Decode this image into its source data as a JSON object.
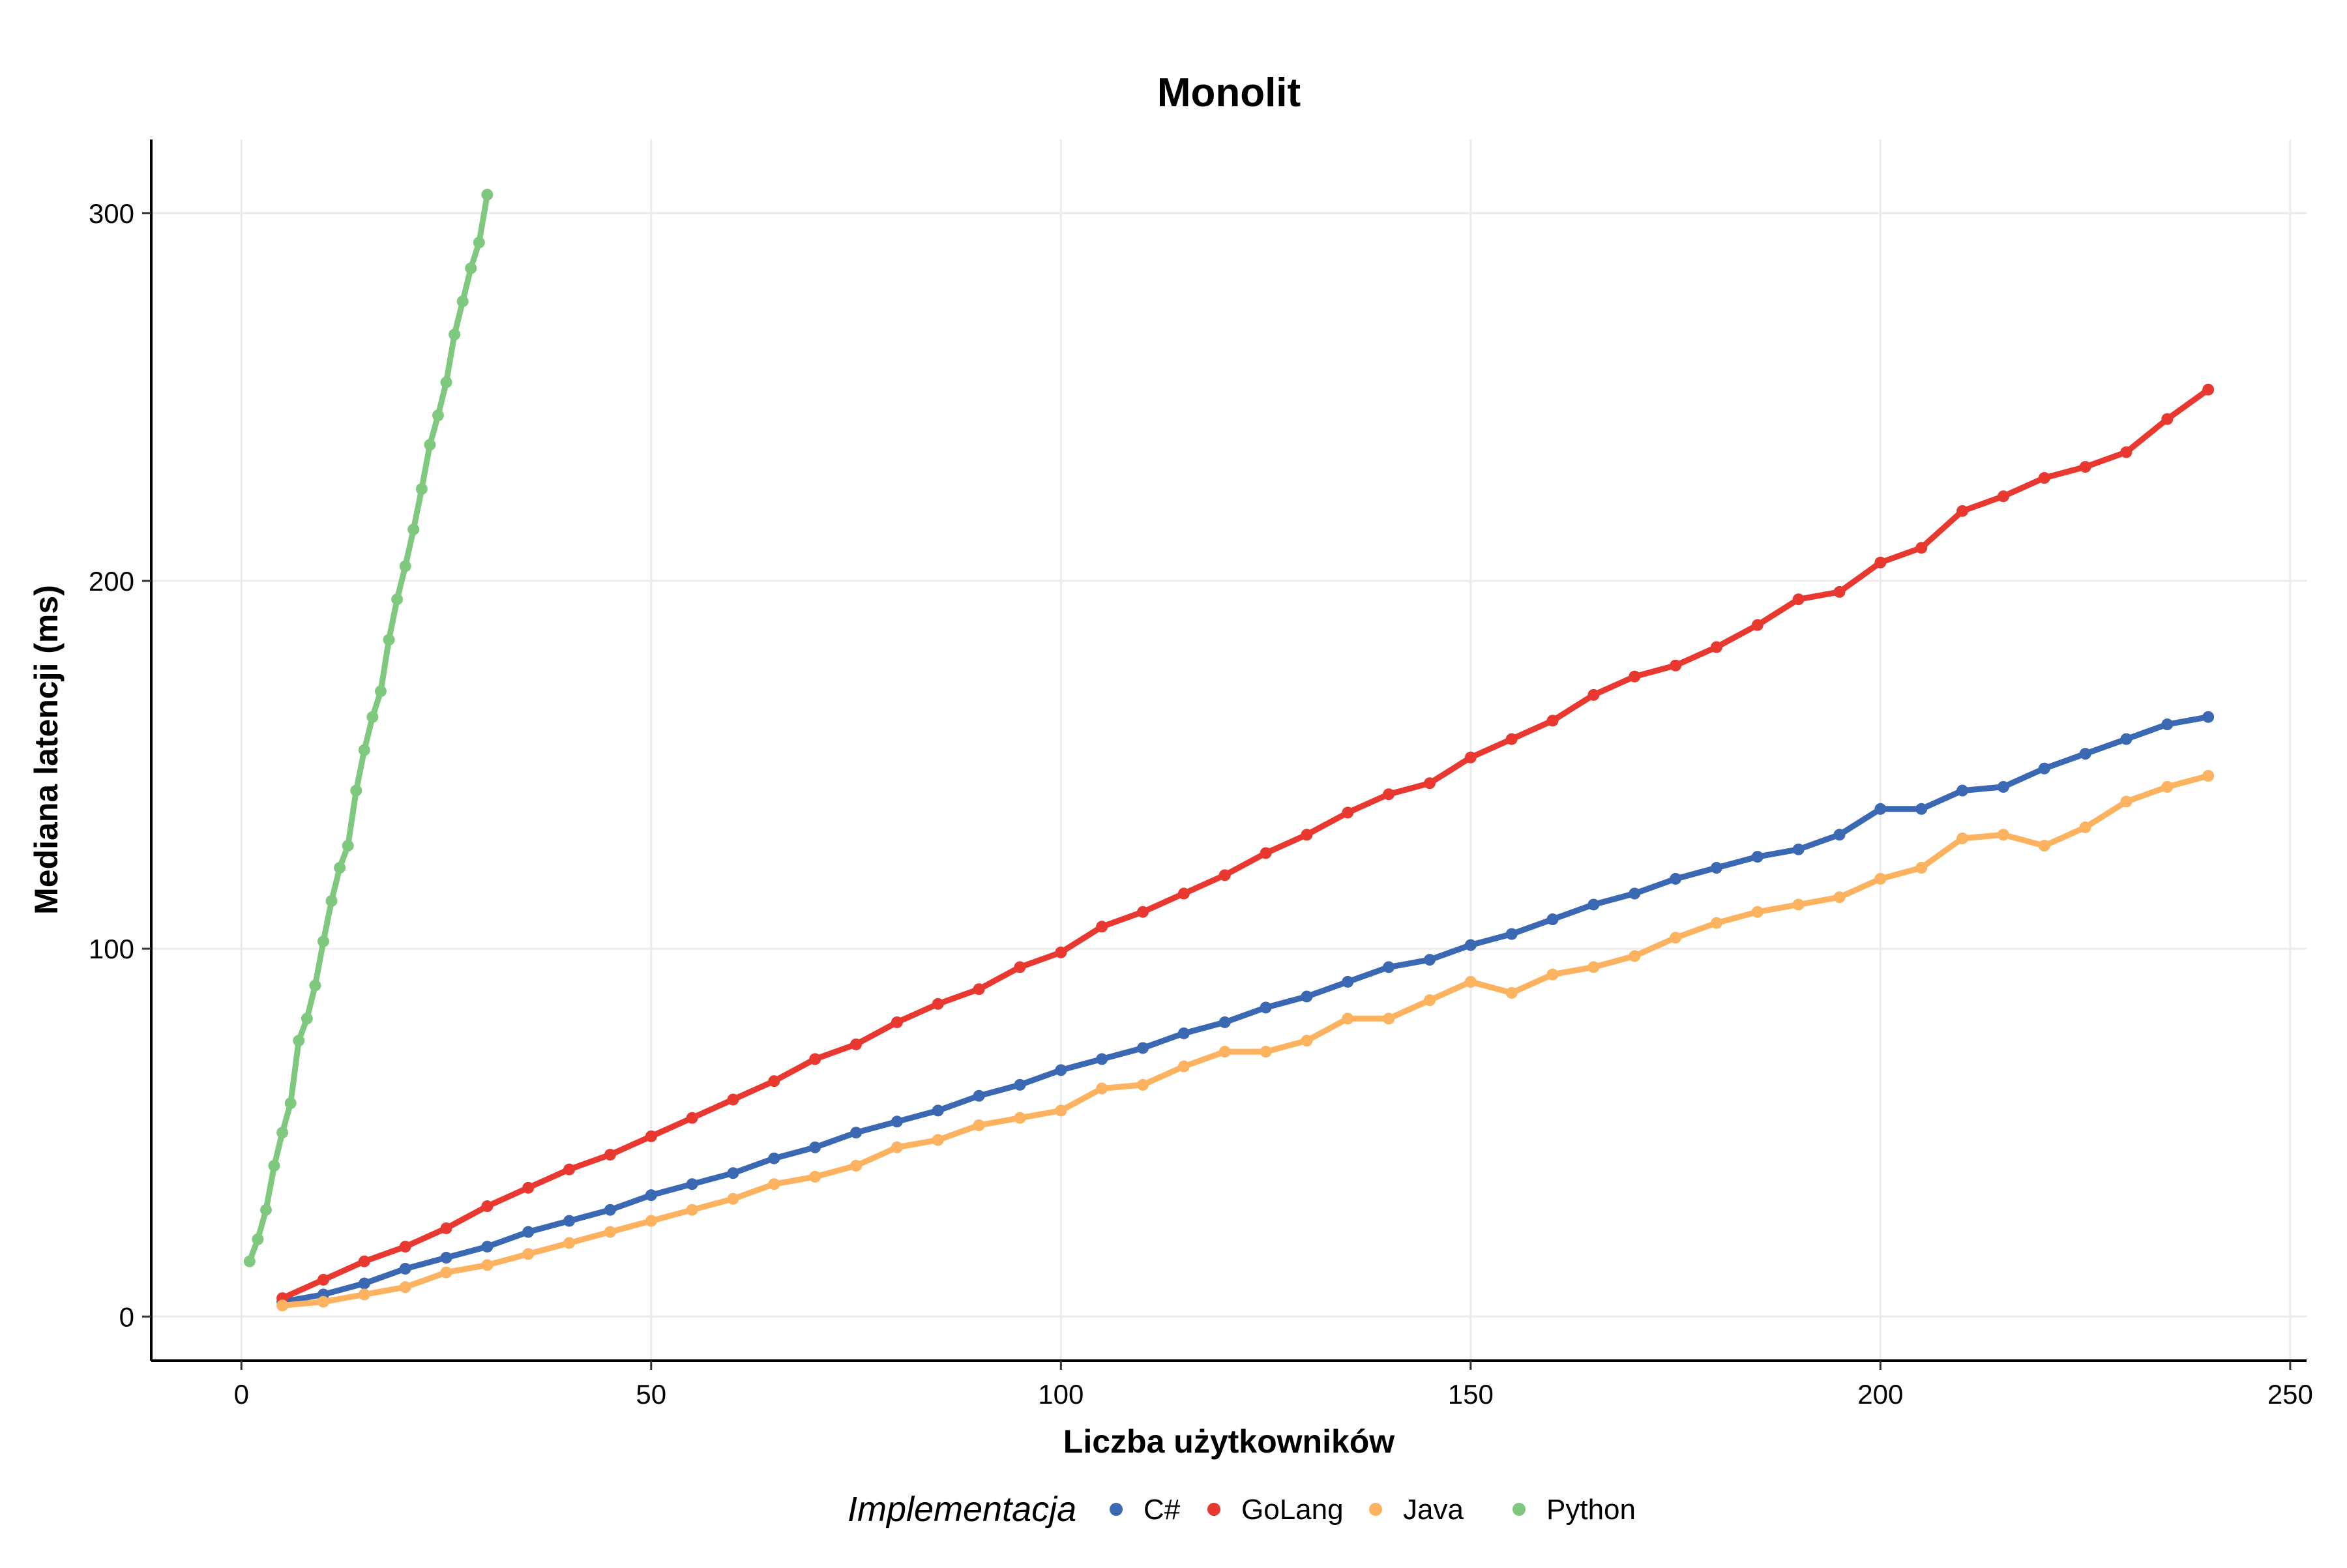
{
  "chart_data": {
    "type": "line",
    "title": "Monolit",
    "xlabel": "Liczba użytkowników",
    "ylabel": "Mediana latencji (ms)",
    "xlim": [
      -11,
      252
    ],
    "ylim": [
      -12,
      320
    ],
    "x_ticks": [
      0,
      50,
      100,
      150,
      200,
      250
    ],
    "y_ticks": [
      0,
      100,
      200,
      300
    ],
    "grid": true,
    "legend": {
      "title": "Implementacja",
      "placement": "bottom"
    },
    "series": [
      {
        "name": "C#",
        "color": "#3a68b3",
        "x": [
          5,
          10,
          15,
          20,
          25,
          30,
          35,
          40,
          45,
          50,
          55,
          60,
          65,
          70,
          75,
          80,
          85,
          90,
          95,
          100,
          105,
          110,
          115,
          120,
          125,
          130,
          135,
          140,
          145,
          150,
          155,
          160,
          165,
          170,
          175,
          180,
          185,
          190,
          195,
          200,
          205,
          210,
          215,
          220,
          225,
          230,
          235,
          240
        ],
        "y": [
          4,
          6,
          9,
          13,
          16,
          19,
          23,
          26,
          29,
          33,
          36,
          39,
          43,
          46,
          50,
          53,
          56,
          60,
          63,
          67,
          70,
          73,
          77,
          80,
          84,
          87,
          91,
          95,
          97,
          101,
          104,
          108,
          112,
          115,
          119,
          122,
          125,
          127,
          131,
          138,
          138,
          143,
          144,
          149,
          153,
          157,
          161,
          163
        ]
      },
      {
        "name": "GoLang",
        "color": "#e8382f",
        "x": [
          5,
          10,
          15,
          20,
          25,
          30,
          35,
          40,
          45,
          50,
          55,
          60,
          65,
          70,
          75,
          80,
          85,
          90,
          95,
          100,
          105,
          110,
          115,
          120,
          125,
          130,
          135,
          140,
          145,
          150,
          155,
          160,
          165,
          170,
          175,
          180,
          185,
          190,
          195,
          200,
          205,
          210,
          215,
          220,
          225,
          230,
          235,
          240
        ],
        "y": [
          5,
          10,
          15,
          19,
          24,
          30,
          35,
          40,
          44,
          49,
          54,
          59,
          64,
          70,
          74,
          80,
          85,
          89,
          95,
          99,
          106,
          110,
          115,
          120,
          126,
          131,
          137,
          142,
          145,
          152,
          157,
          162,
          169,
          174,
          177,
          182,
          188,
          195,
          197,
          205,
          209,
          219,
          223,
          228,
          231,
          235,
          244,
          252
        ]
      },
      {
        "name": "Java",
        "color": "#fdb25f",
        "x": [
          5,
          10,
          15,
          20,
          25,
          30,
          35,
          40,
          45,
          50,
          55,
          60,
          65,
          70,
          75,
          80,
          85,
          90,
          95,
          100,
          105,
          110,
          115,
          120,
          125,
          130,
          135,
          140,
          145,
          150,
          155,
          160,
          165,
          170,
          175,
          180,
          185,
          190,
          195,
          200,
          205,
          210,
          215,
          220,
          225,
          230,
          235,
          240
        ],
        "y": [
          3,
          4,
          6,
          8,
          12,
          14,
          17,
          20,
          23,
          26,
          29,
          32,
          36,
          38,
          41,
          46,
          48,
          52,
          54,
          56,
          62,
          63,
          68,
          72,
          72,
          75,
          81,
          81,
          86,
          91,
          88,
          93,
          95,
          98,
          103,
          107,
          110,
          112,
          114,
          119,
          122,
          130,
          131,
          128,
          133,
          140,
          144,
          147
        ]
      },
      {
        "name": "Python",
        "color": "#7fc97f",
        "x": [
          1,
          2,
          3,
          4,
          5,
          6,
          7,
          8,
          9,
          10,
          11,
          12,
          13,
          14,
          15,
          16,
          17,
          18,
          19,
          20,
          21,
          22,
          23,
          24,
          25,
          26,
          27,
          28,
          29,
          30
        ],
        "y": [
          15,
          21,
          29,
          41,
          50,
          58,
          75,
          81,
          90,
          102,
          113,
          122,
          128,
          143,
          154,
          163,
          170,
          184,
          195,
          204,
          214,
          225,
          237,
          245,
          254,
          267,
          276,
          285,
          292,
          305
        ]
      }
    ]
  }
}
